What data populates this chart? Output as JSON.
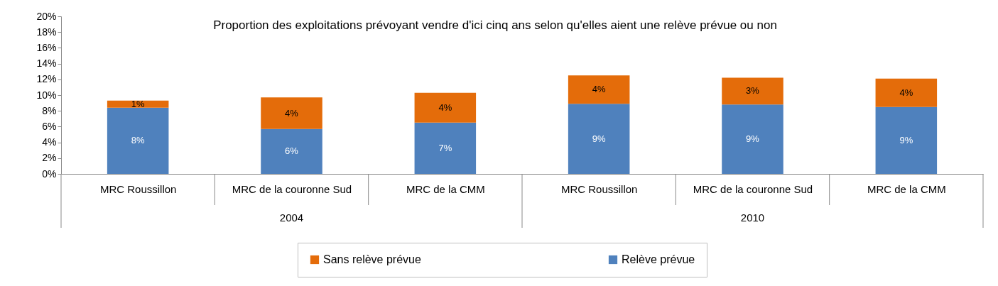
{
  "chart_data": {
    "type": "bar",
    "title": "Proportion des exploitations prévoyant vendre d'ici cinq ans selon qu'elles aient une relève prévue ou non",
    "categories": [
      "MRC Roussillon",
      "MRC de la couronne Sud",
      "MRC de la CMM",
      "MRC Roussillon",
      "MRC de la couronne Sud",
      "MRC de la CMM"
    ],
    "annotations": [
      "2004",
      "2010"
    ],
    "stacked": true,
    "series": [
      {
        "name": "Relève prévue",
        "color": "#4f81bd",
        "values": [
          8.4,
          5.7,
          6.5,
          8.9,
          8.8,
          8.5
        ],
        "value_labels": [
          "8%",
          "6%",
          "7%",
          "9%",
          "9%",
          "9%"
        ]
      },
      {
        "name": "Sans relève prévue",
        "color": "#e46c0a",
        "values": [
          0.9,
          4.0,
          3.8,
          3.6,
          3.4,
          3.6
        ],
        "value_labels": [
          "1%",
          "4%",
          "4%",
          "4%",
          "3%",
          "4%"
        ]
      }
    ],
    "ylim": [
      0,
      20
    ],
    "yticks": [
      {
        "value": 0,
        "label": "0%"
      },
      {
        "value": 2,
        "label": "2%"
      },
      {
        "value": 4,
        "label": "4%"
      },
      {
        "value": 6,
        "label": "6%"
      },
      {
        "value": 8,
        "label": "8%"
      },
      {
        "value": 10,
        "label": "10%"
      },
      {
        "value": 12,
        "label": "12%"
      },
      {
        "value": 14,
        "label": "14%"
      },
      {
        "value": 16,
        "label": "16%"
      },
      {
        "value": 18,
        "label": "18%"
      },
      {
        "value": 20,
        "label": "20%"
      }
    ],
    "legend": "bottom"
  }
}
